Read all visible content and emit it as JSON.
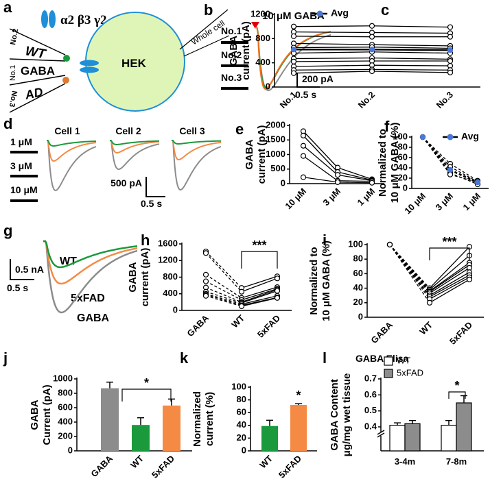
{
  "figure": {
    "a": {
      "label": "a",
      "subunits": "α2 β3 γ2",
      "pipettes": [
        "No.2",
        "WT",
        "No.1",
        "GABA",
        "No.3",
        "AD"
      ],
      "cell": "HEK",
      "recording": "Whole cell"
    },
    "b": {
      "label": "b",
      "stimulus": "10 μM GABA",
      "legend": [
        "No.1",
        "No.2",
        "No.3"
      ],
      "scale_current": "200 pA",
      "scale_time": "0.5 s"
    },
    "d": {
      "label": "d",
      "legend": [
        "1 μM",
        "3 μM",
        "10 μM"
      ],
      "cells": [
        "Cell 1",
        "Cell 2",
        "Cell 3"
      ],
      "scale_current": "500 pA",
      "scale_time": "0.5 s"
    },
    "g": {
      "label": "g",
      "traces": [
        "WT",
        "5xFAD",
        "GABA"
      ],
      "scale_current": "0.5 nA",
      "scale_time": "0.5 s"
    }
  },
  "chart_data": [
    {
      "type": "line",
      "panel": "c",
      "y_label": [
        "GABA",
        "current (pA)"
      ],
      "categories": [
        "No.1",
        "No.2",
        "No.3"
      ],
      "category_colors": [
        "#8c8c8c",
        "#1a9a3c",
        "#f0701e"
      ],
      "ylim": [
        0,
        1200
      ],
      "yticks": [
        0,
        400,
        800,
        1200
      ],
      "legend": "top",
      "series": [
        {
          "color": "#000000",
          "values": [
            1000,
            1010,
            990
          ]
        },
        {
          "color": "#000000",
          "values": [
            910,
            900,
            890
          ]
        },
        {
          "color": "#000000",
          "values": [
            840,
            830,
            830
          ]
        },
        {
          "color": "#000000",
          "values": [
            720,
            700,
            680
          ]
        },
        {
          "color": "#000000",
          "values": [
            650,
            660,
            640
          ]
        },
        {
          "color": "#000000",
          "values": [
            560,
            580,
            560
          ]
        },
        {
          "color": "#000000",
          "values": [
            470,
            480,
            460
          ]
        },
        {
          "color": "#000000",
          "values": [
            420,
            430,
            430
          ]
        },
        {
          "color": "#000000",
          "values": [
            340,
            360,
            350
          ]
        },
        {
          "color": "#000000",
          "values": [
            280,
            290,
            280
          ]
        },
        {
          "color": "#000000",
          "values": [
            230,
            260,
            240
          ]
        },
        {
          "name": "Avg",
          "color": "#4a78d8",
          "values": [
            620,
            620,
            610
          ]
        }
      ]
    },
    {
      "type": "line",
      "panel": "e",
      "y_label": [
        "GABA",
        "current (pA)"
      ],
      "categories": [
        "10 μM",
        "3 μM",
        "1 μM"
      ],
      "ylim": [
        0,
        2000
      ],
      "yticks": [
        0,
        500,
        1000,
        1500,
        2000
      ],
      "series": [
        {
          "color": "#000000",
          "values": [
            1800,
            550,
            150
          ]
        },
        {
          "color": "#000000",
          "values": [
            1650,
            400,
            120
          ]
        },
        {
          "color": "#000000",
          "values": [
            1300,
            300,
            100
          ]
        },
        {
          "color": "#000000",
          "values": [
            950,
            100,
            80
          ]
        },
        {
          "color": "#000000",
          "values": [
            220,
            50,
            30
          ]
        }
      ]
    },
    {
      "type": "line",
      "panel": "f",
      "y_label": [
        "Normalized to",
        "10 μM GABA (%)"
      ],
      "categories": [
        "10 μM",
        "3 μM",
        "1 μM"
      ],
      "ylim": [
        0,
        100
      ],
      "yticks": [
        0,
        20,
        40,
        60,
        80,
        100
      ],
      "legend": "top",
      "series": [
        {
          "color": "#000000",
          "dash": true,
          "values": [
            100,
            48,
            15
          ]
        },
        {
          "color": "#000000",
          "dash": true,
          "values": [
            100,
            42,
            13
          ]
        },
        {
          "color": "#000000",
          "dash": true,
          "values": [
            100,
            35,
            10
          ]
        },
        {
          "color": "#000000",
          "dash": true,
          "values": [
            100,
            30,
            8
          ]
        },
        {
          "color": "#000000",
          "dash": true,
          "values": [
            100,
            27,
            12
          ]
        },
        {
          "name": "Avg",
          "color": "#4a78d8",
          "dash": true,
          "values": [
            100,
            36,
            12
          ]
        }
      ]
    },
    {
      "type": "line",
      "panel": "h",
      "y_label": [
        "GABA",
        "current (pA)"
      ],
      "categories": [
        "GABA",
        "WT",
        "5xFAD"
      ],
      "ylim": [
        0,
        1600
      ],
      "yticks": [
        0,
        400,
        800,
        1200,
        1600
      ],
      "dashed_segments": [
        0
      ],
      "significance": "***",
      "series": [
        {
          "color": "#000000",
          "values": [
            1420,
            540,
            820
          ]
        },
        {
          "color": "#000000",
          "values": [
            1380,
            450,
            770
          ]
        },
        {
          "color": "#000000",
          "values": [
            860,
            300,
            560
          ]
        },
        {
          "color": "#000000",
          "values": [
            700,
            250,
            520
          ]
        },
        {
          "color": "#000000",
          "values": [
            550,
            200,
            500
          ]
        },
        {
          "color": "#000000",
          "values": [
            450,
            180,
            470
          ]
        },
        {
          "color": "#000000",
          "values": [
            400,
            150,
            350
          ]
        },
        {
          "color": "#000000",
          "values": [
            380,
            120,
            310
          ]
        },
        {
          "color": "#000000",
          "values": [
            350,
            100,
            300
          ]
        }
      ]
    },
    {
      "type": "line",
      "panel": "i",
      "y_label": [
        "Normalized to",
        "10 μM GABA (%)"
      ],
      "categories": [
        "GABA",
        "WT",
        "5xFAD"
      ],
      "ylim": [
        0,
        100
      ],
      "yticks": [
        0,
        20,
        40,
        60,
        80,
        100
      ],
      "dashed_segments": [
        0
      ],
      "significance": "***",
      "series": [
        {
          "color": "#000000",
          "values": [
            100,
            40,
            97
          ]
        },
        {
          "color": "#000000",
          "values": [
            100,
            38,
            85
          ]
        },
        {
          "color": "#000000",
          "values": [
            100,
            36,
            75
          ]
        },
        {
          "color": "#000000",
          "values": [
            100,
            35,
            72
          ]
        },
        {
          "color": "#000000",
          "values": [
            100,
            33,
            68
          ]
        },
        {
          "color": "#000000",
          "values": [
            100,
            30,
            62
          ]
        },
        {
          "color": "#000000",
          "values": [
            100,
            28,
            58
          ]
        },
        {
          "color": "#000000",
          "values": [
            100,
            25,
            55
          ]
        },
        {
          "color": "#000000",
          "values": [
            100,
            20,
            52
          ]
        }
      ]
    },
    {
      "type": "bar",
      "panel": "j",
      "y_label": [
        "GABA",
        "Current (pA)"
      ],
      "categories": [
        "GABA",
        "WT",
        "5xFAD"
      ],
      "values": [
        870,
        360,
        630
      ],
      "errors": [
        85,
        100,
        90
      ],
      "colors": [
        "#8c8c8c",
        "#1a9a3c",
        "#f58a45"
      ],
      "ylim": [
        0,
        1000
      ],
      "yticks": [
        0,
        200,
        400,
        600,
        800,
        1000
      ],
      "significance": "*"
    },
    {
      "type": "bar",
      "panel": "k",
      "y_label": [
        "Normalized",
        "current (%)"
      ],
      "categories": [
        "WT",
        "5xFAD"
      ],
      "values": [
        39,
        72
      ],
      "errors": [
        9,
        2
      ],
      "colors": [
        "#1a9a3c",
        "#f58a45"
      ],
      "ylim": [
        0,
        100
      ],
      "yticks": [
        0,
        20,
        40,
        60,
        80,
        100
      ],
      "significance": "*"
    },
    {
      "type": "bar",
      "panel": "l",
      "title": "GABA Elisa",
      "y_label": [
        "GABA Content",
        "μg/mg wet tissue"
      ],
      "categories": [
        "3-4m",
        "7-8m"
      ],
      "series": [
        {
          "name": "WT",
          "color": "#ffffff",
          "values": [
            0.41,
            0.41
          ],
          "errors": [
            0.015,
            0.03
          ]
        },
        {
          "name": "5xFAD",
          "color": "#8c8c8c",
          "values": [
            0.42,
            0.55
          ],
          "errors": [
            0.02,
            0.045
          ]
        }
      ],
      "ylim": [
        0.25,
        0.7
      ],
      "yticks": [
        0.4,
        0.5,
        0.6,
        0.7
      ],
      "axis_break": true,
      "legend": "top-left",
      "significance": "*"
    }
  ]
}
